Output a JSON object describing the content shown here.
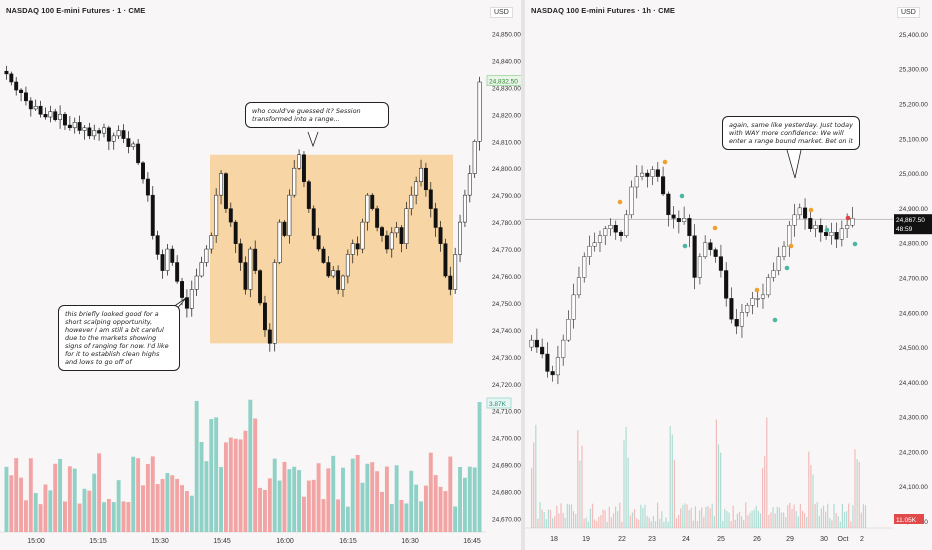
{
  "left": {
    "title": "NASDAQ 100 E-mini Futures · 1 · CME",
    "currency": "USD",
    "price_label": "24,832.50",
    "volume_label": "3.87K",
    "y_ticks": [
      "24,850.00",
      "24,840.00",
      "24,830.00",
      "24,820.00",
      "24,810.00",
      "24,800.00",
      "24,790.00",
      "24,780.00",
      "24,770.00",
      "24,760.00",
      "24,750.00",
      "24,740.00",
      "24,730.00",
      "24,720.00",
      "24,710.00",
      "24,700.00",
      "24,690.00",
      "24,680.00",
      "24,670.00"
    ],
    "x_ticks": [
      "15:00",
      "15:15",
      "15:30",
      "15:45",
      "16:00",
      "16:15",
      "16:30",
      "16:45"
    ],
    "callout_top": "who could've guessed it? Session transformed into a range...",
    "callout_left": "this briefly looked good for a short scalping opportunity, however I am still a bit careful due to the markets showing signs of ranging for now. I'd like for it to establish clean highs and lows to go off of"
  },
  "right": {
    "title": "NASDAQ 100 E-mini Futures · 1h · CME",
    "currency": "USD",
    "price_label": "24,867.50",
    "countdown": "48:59",
    "volume_label": "11.05K",
    "y_ticks": [
      "25,400.00",
      "25,300.00",
      "25,200.00",
      "25,100.00",
      "25,000.00",
      "24,900.00",
      "24,800.00",
      "24,700.00",
      "24,600.00",
      "24,500.00",
      "24,400.00",
      "24,300.00",
      "24,200.00",
      "24,100.00",
      "24,000.00"
    ],
    "x_ticks": [
      "18",
      "19",
      "22",
      "23",
      "24",
      "25",
      "26",
      "29",
      "30",
      "Oct",
      "2"
    ],
    "callout": "again, same like yesterday. Just today with WAY more confidence: We will enter a range bound market. Bet on it"
  },
  "colors": {
    "up": "#2a2a2a",
    "down": "#111111",
    "vol_up": "#8fd1c6",
    "vol_down": "#f2a3a3",
    "range_box": "#f7c98a",
    "price_tag": "#8fcf8f"
  },
  "chart_data": [
    {
      "type": "candlestick",
      "title": "NASDAQ 100 E-mini Futures · 1 · CME",
      "x_ticks": [
        "15:00",
        "15:15",
        "15:30",
        "15:45",
        "16:00",
        "16:15",
        "16:30",
        "16:45"
      ],
      "ylim": [
        24665,
        24855
      ],
      "close_path": [
        24835,
        24832,
        24829,
        24828,
        24825,
        24822,
        24823,
        24820,
        24819,
        24821,
        24818,
        24820,
        24816,
        24815,
        24817,
        24814,
        24815,
        24812,
        24814,
        24813,
        24815,
        24810,
        24812,
        24814,
        24811,
        24808,
        24809,
        24802,
        24796,
        24790,
        24775,
        24768,
        24762,
        24770,
        24765,
        24758,
        24752,
        24748,
        24755,
        24760,
        24765,
        24770,
        24775,
        24790,
        24798,
        24785,
        24780,
        24772,
        24765,
        24755,
        24770,
        24762,
        24750,
        24740,
        24735,
        24765,
        24780,
        24775,
        24790,
        24800,
        24805,
        24795,
        24785,
        24775,
        24770,
        24765,
        24760,
        24762,
        24755,
        24760,
        24768,
        24772,
        24770,
        24780,
        24790,
        24785,
        24778,
        24775,
        24770,
        24776,
        24778,
        24772,
        24785,
        24790,
        24795,
        24800,
        24792,
        24785,
        24778,
        24772,
        24760,
        24755,
        24768,
        24780,
        24790,
        24798,
        24810,
        24832
      ],
      "range_box": [
        24735,
        24805
      ],
      "last_price": 24832.5,
      "last_volume": "3.87K"
    },
    {
      "type": "candlestick",
      "title": "NASDAQ 100 E-mini Futures · 1h · CME",
      "x_ticks": [
        "18",
        "19",
        "22",
        "23",
        "24",
        "25",
        "26",
        "29",
        "30",
        "Oct",
        "2"
      ],
      "ylim": [
        23980,
        25440
      ],
      "close_path": [
        24520,
        24500,
        24480,
        24430,
        24420,
        24470,
        24520,
        24580,
        24650,
        24700,
        24760,
        24790,
        24800,
        24820,
        24840,
        24850,
        24830,
        24820,
        24880,
        24960,
        24990,
        25000,
        24990,
        25010,
        24990,
        24940,
        24880,
        24870,
        24860,
        24870,
        24820,
        24700,
        24760,
        24800,
        24780,
        24760,
        24720,
        24640,
        24580,
        24560,
        24600,
        24620,
        24640,
        24640,
        24650,
        24700,
        24720,
        24760,
        24790,
        24850,
        24880,
        24900,
        24870,
        24840,
        24850,
        24830,
        24820,
        24830,
        24810,
        24840,
        24850,
        24870
      ],
      "last_price": 24867.5,
      "countdown": "48:59",
      "last_volume": "11.05K"
    }
  ]
}
